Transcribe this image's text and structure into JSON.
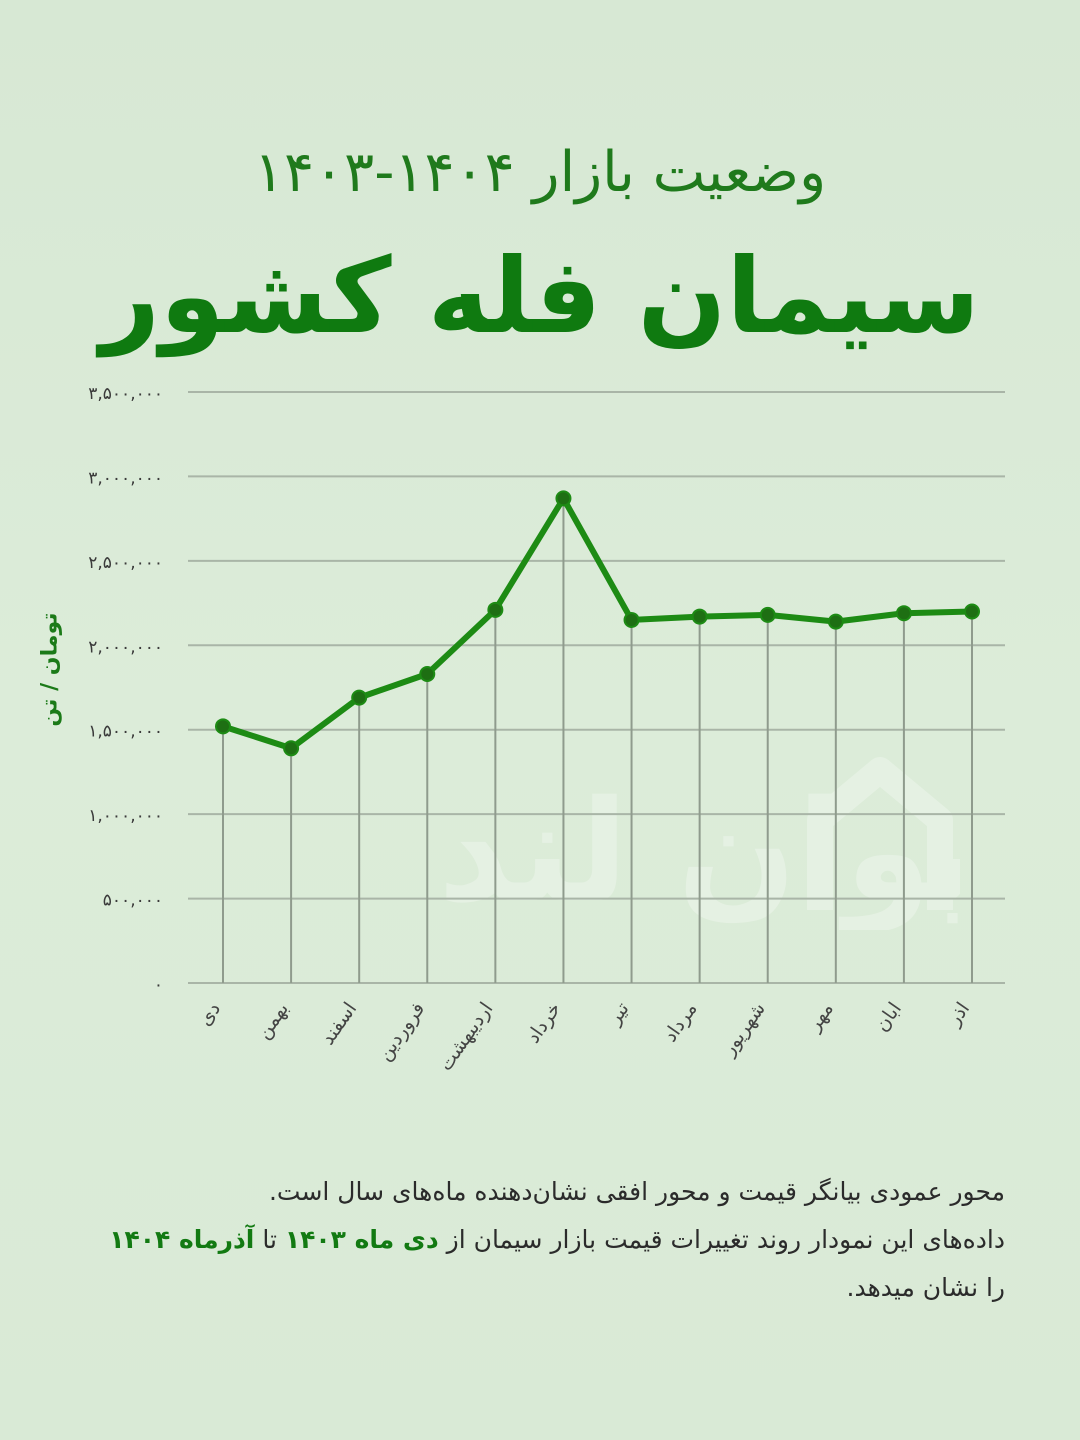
{
  "header": {
    "subtitle": "وضعیت بازار ۱۴۰۴-۱۴۰۳",
    "title": "سیمان فله کشور"
  },
  "colors": {
    "line": "#1d8b14",
    "marker": "#1e6f13",
    "grid": "#a9b5a7",
    "title": "#0f7a10",
    "background": "#dcebd9"
  },
  "watermark_text": "نیوان لند",
  "watermark_icon": "house-icon",
  "chart_data": {
    "type": "line",
    "ylabel": "تومان / تن",
    "ylim": [
      0,
      3500000
    ],
    "yticks": [
      0,
      500000,
      1000000,
      1500000,
      2000000,
      2500000,
      3000000,
      3500000
    ],
    "ytick_labels": [
      "۰",
      "۵۰۰,۰۰۰",
      "۱,۰۰۰,۰۰۰",
      "۱,۵۰۰,۰۰۰",
      "۲,۰۰۰,۰۰۰",
      "۲,۵۰۰,۰۰۰",
      "۳,۰۰۰,۰۰۰",
      "۳,۵۰۰,۰۰۰"
    ],
    "categories": [
      "دی",
      "بهمن",
      "اسفند",
      "فروردین",
      "اردیبهشت",
      "خرداد",
      "تیر",
      "مرداد",
      "شهریور",
      "مهر",
      "ابان",
      "اذر"
    ],
    "values": [
      1520000,
      1390000,
      1690000,
      1830000,
      2210000,
      2870000,
      2150000,
      2170000,
      2180000,
      2140000,
      2190000,
      2200000
    ],
    "grid": true,
    "legend": "none"
  },
  "description": {
    "line1": "محور عمودی بیانگر قیمت و محور افقی نشان‌دهنده ماه‌های سال است.",
    "line2_a": "داده‌های این نمودار روند تغییرات قیمت  بازار سیمان از ",
    "line2_b": "دی ماه ۱۴۰۳",
    "line2_c": " تا ",
    "line2_d": "آذرماه ۱۴۰۴",
    "line3": "را نشان میدهد."
  }
}
